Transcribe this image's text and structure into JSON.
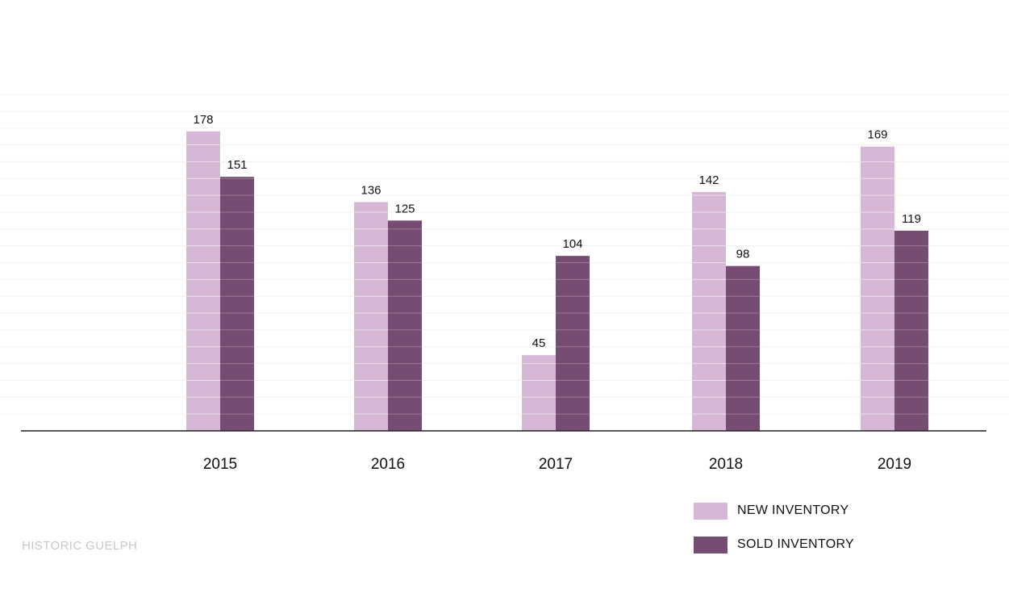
{
  "chart_data": {
    "type": "bar",
    "categories": [
      "2015",
      "2016",
      "2017",
      "2018",
      "2019"
    ],
    "series": [
      {
        "name": "NEW INVENTORY",
        "values": [
          178,
          136,
          45,
          142,
          169
        ],
        "color": "#d6b8d6"
      },
      {
        "name": "SOLD INVENTORY",
        "values": [
          151,
          125,
          104,
          98,
          119
        ],
        "color": "#764c72"
      }
    ],
    "title": "",
    "xlabel": "",
    "ylabel": "",
    "ylim": [
      0,
      200
    ],
    "grid": true,
    "legend_position": "bottom-right"
  },
  "footer": {
    "source": "HISTORIC GUELPH"
  }
}
